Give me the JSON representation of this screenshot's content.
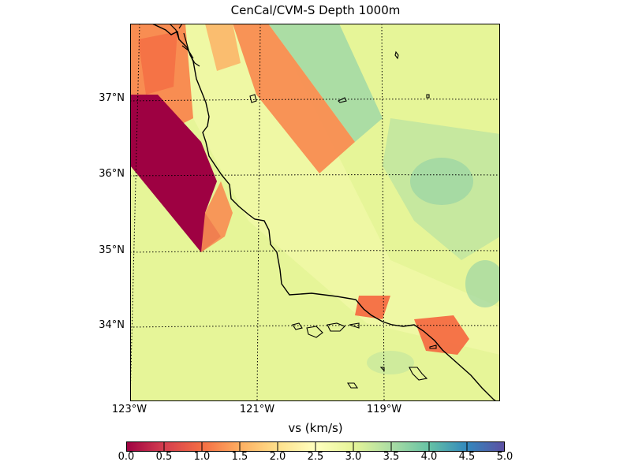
{
  "title": "CenCal/CVM-S Depth 1000m",
  "colorbar": {
    "label": "vs (km/s)",
    "ticks": [
      "0.0",
      "0.5",
      "1.0",
      "1.5",
      "2.0",
      "2.5",
      "3.0",
      "3.5",
      "4.0",
      "4.5",
      "5.0"
    ],
    "colormap": "Spectral",
    "range": [
      0.0,
      5.0
    ]
  },
  "lat_labels": [
    "37°N",
    "36°N",
    "35°N",
    "34°N"
  ],
  "lon_labels": [
    "123°W",
    "121°W",
    "119°W"
  ],
  "colors": {
    "low": "#9e0142",
    "mid": "#ffffbf",
    "high": "#5e4fa2",
    "coast": "#000000"
  }
}
